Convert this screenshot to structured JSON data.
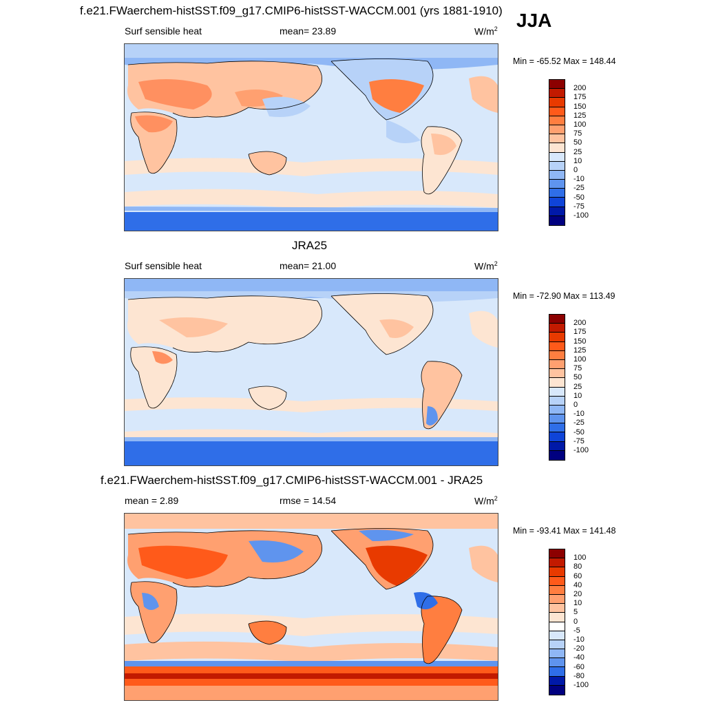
{
  "season": "JJA",
  "panels": [
    {
      "title": "f.e21.FWaerchem-histSST.f09_g17.CMIP6-histSST-WACCM.001 (yrs 1881-1910)",
      "left_label": "Surf sensible heat",
      "center_label": "mean=  23.89",
      "units": "W/m",
      "units_sup": "2",
      "minmax": "Min = -65.52 Max = 148.44",
      "colorbar_labels": [
        "200",
        "175",
        "150",
        "125",
        "100",
        "75",
        "50",
        "25",
        "10",
        "0",
        "-10",
        "-25",
        "-50",
        "-75",
        "-100"
      ],
      "colorbar_colors": [
        "#8c0000",
        "#c21a00",
        "#e83a00",
        "#ff5a1a",
        "#ff7e40",
        "#ffa070",
        "#ffc3a0",
        "#fde5d2",
        "#d8e8fb",
        "#b7d2f8",
        "#8fb7f5",
        "#5f94ee",
        "#2f6ee8",
        "#0f44d8",
        "#0019a8",
        "#000080"
      ]
    },
    {
      "title": "JRA25",
      "left_label": "Surf sensible heat",
      "center_label": "mean=  21.00",
      "units": "W/m",
      "units_sup": "2",
      "minmax": "Min = -72.90 Max = 113.49",
      "colorbar_labels": [
        "200",
        "175",
        "150",
        "125",
        "100",
        "75",
        "50",
        "25",
        "10",
        "0",
        "-10",
        "-25",
        "-50",
        "-75",
        "-100"
      ],
      "colorbar_colors": [
        "#8c0000",
        "#c21a00",
        "#e83a00",
        "#ff5a1a",
        "#ff7e40",
        "#ffa070",
        "#ffc3a0",
        "#fde5d2",
        "#d8e8fb",
        "#b7d2f8",
        "#8fb7f5",
        "#5f94ee",
        "#2f6ee8",
        "#0f44d8",
        "#0019a8",
        "#000080"
      ]
    },
    {
      "title": "f.e21.FWaerchem-histSST.f09_g17.CMIP6-histSST-WACCM.001 - JRA25",
      "left_label": "mean =   2.89",
      "center_label": "rmse =  14.54",
      "units": "W/m",
      "units_sup": "2",
      "minmax": "Min = -93.41 Max = 141.48",
      "colorbar_labels": [
        "100",
        "80",
        "60",
        "40",
        "20",
        "10",
        "5",
        "0",
        "-5",
        "-10",
        "-20",
        "-40",
        "-60",
        "-80",
        "-100"
      ],
      "colorbar_colors": [
        "#8c0000",
        "#c21a00",
        "#e83a00",
        "#ff5a1a",
        "#ff7e40",
        "#ffa070",
        "#ffc3a0",
        "#fde5d2",
        "#ffffff",
        "#d8e8fb",
        "#b7d2f8",
        "#8fb7f5",
        "#5f94ee",
        "#2f6ee8",
        "#0019a8",
        "#000080"
      ]
    }
  ]
}
